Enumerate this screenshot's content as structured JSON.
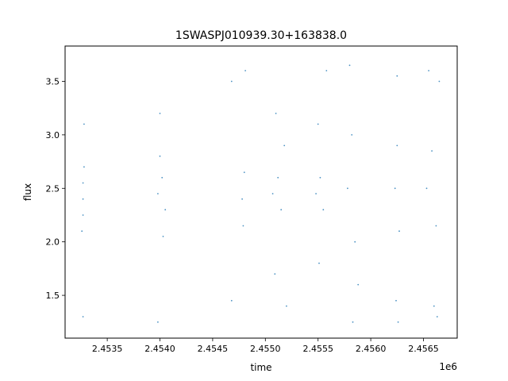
{
  "chart_data": {
    "type": "scatter",
    "title": "1SWASPJ010939.30+163838.0",
    "xlabel": "time",
    "ylabel": "flux",
    "x_offset_label": "1e6",
    "xlim": [
      2.4531,
      2.45682
    ],
    "ylim": [
      1.1,
      3.83
    ],
    "x_ticks": [
      2.4535,
      2.454,
      2.4545,
      2.455,
      2.4555,
      2.456,
      2.4565
    ],
    "x_tick_labels": [
      "2.4535",
      "2.4540",
      "2.4545",
      "2.4550",
      "2.4555",
      "2.4560",
      "2.4565"
    ],
    "y_ticks": [
      1.5,
      2.0,
      2.5,
      3.0,
      3.5
    ],
    "y_tick_labels": [
      "1.5",
      "2.0",
      "2.5",
      "3.0",
      "3.5"
    ],
    "grid": false,
    "legend": "none",
    "point_color": "#1f77b4",
    "series": [
      {
        "values": [
          {
            "x": 2.45327,
            "y": 2.4
          },
          {
            "x": 2.45327,
            "y": 2.55
          },
          {
            "x": 2.45327,
            "y": 2.25
          },
          {
            "x": 2.45328,
            "y": 2.7
          },
          {
            "x": 2.45326,
            "y": 2.1
          },
          {
            "x": 2.45328,
            "y": 3.1
          },
          {
            "x": 2.45327,
            "y": 1.3
          },
          {
            "x": 2.45398,
            "y": 2.45
          },
          {
            "x": 2.45402,
            "y": 2.6
          },
          {
            "x": 2.45405,
            "y": 2.3
          },
          {
            "x": 2.454,
            "y": 2.8
          },
          {
            "x": 2.45403,
            "y": 2.05
          },
          {
            "x": 2.454,
            "y": 3.2
          },
          {
            "x": 2.45398,
            "y": 1.25
          },
          {
            "x": 2.45478,
            "y": 2.4
          },
          {
            "x": 2.4548,
            "y": 2.65
          },
          {
            "x": 2.45479,
            "y": 2.15
          },
          {
            "x": 2.45468,
            "y": 3.5
          },
          {
            "x": 2.45468,
            "y": 1.45
          },
          {
            "x": 2.45481,
            "y": 3.6
          },
          {
            "x": 2.45507,
            "y": 2.45
          },
          {
            "x": 2.45512,
            "y": 2.6
          },
          {
            "x": 2.45515,
            "y": 2.3
          },
          {
            "x": 2.4551,
            "y": 3.2
          },
          {
            "x": 2.45509,
            "y": 1.7
          },
          {
            "x": 2.45518,
            "y": 2.9
          },
          {
            "x": 2.4552,
            "y": 1.4
          },
          {
            "x": 2.45548,
            "y": 2.45
          },
          {
            "x": 2.45552,
            "y": 2.6
          },
          {
            "x": 2.45555,
            "y": 2.3
          },
          {
            "x": 2.4555,
            "y": 3.1
          },
          {
            "x": 2.45551,
            "y": 1.8
          },
          {
            "x": 2.45558,
            "y": 3.6
          },
          {
            "x": 2.45578,
            "y": 2.5
          },
          {
            "x": 2.45582,
            "y": 3.0
          },
          {
            "x": 2.45585,
            "y": 2.0
          },
          {
            "x": 2.4558,
            "y": 3.65
          },
          {
            "x": 2.45583,
            "y": 1.25
          },
          {
            "x": 2.45588,
            "y": 1.6
          },
          {
            "x": 2.45623,
            "y": 2.5
          },
          {
            "x": 2.45625,
            "y": 2.9
          },
          {
            "x": 2.45627,
            "y": 2.1
          },
          {
            "x": 2.45625,
            "y": 3.55
          },
          {
            "x": 2.45624,
            "y": 1.45
          },
          {
            "x": 2.45626,
            "y": 1.25
          },
          {
            "x": 2.45653,
            "y": 2.5
          },
          {
            "x": 2.45658,
            "y": 2.85
          },
          {
            "x": 2.45662,
            "y": 2.15
          },
          {
            "x": 2.45655,
            "y": 3.6
          },
          {
            "x": 2.4566,
            "y": 1.4
          },
          {
            "x": 2.45665,
            "y": 3.5
          },
          {
            "x": 2.45663,
            "y": 1.3
          }
        ]
      }
    ]
  }
}
